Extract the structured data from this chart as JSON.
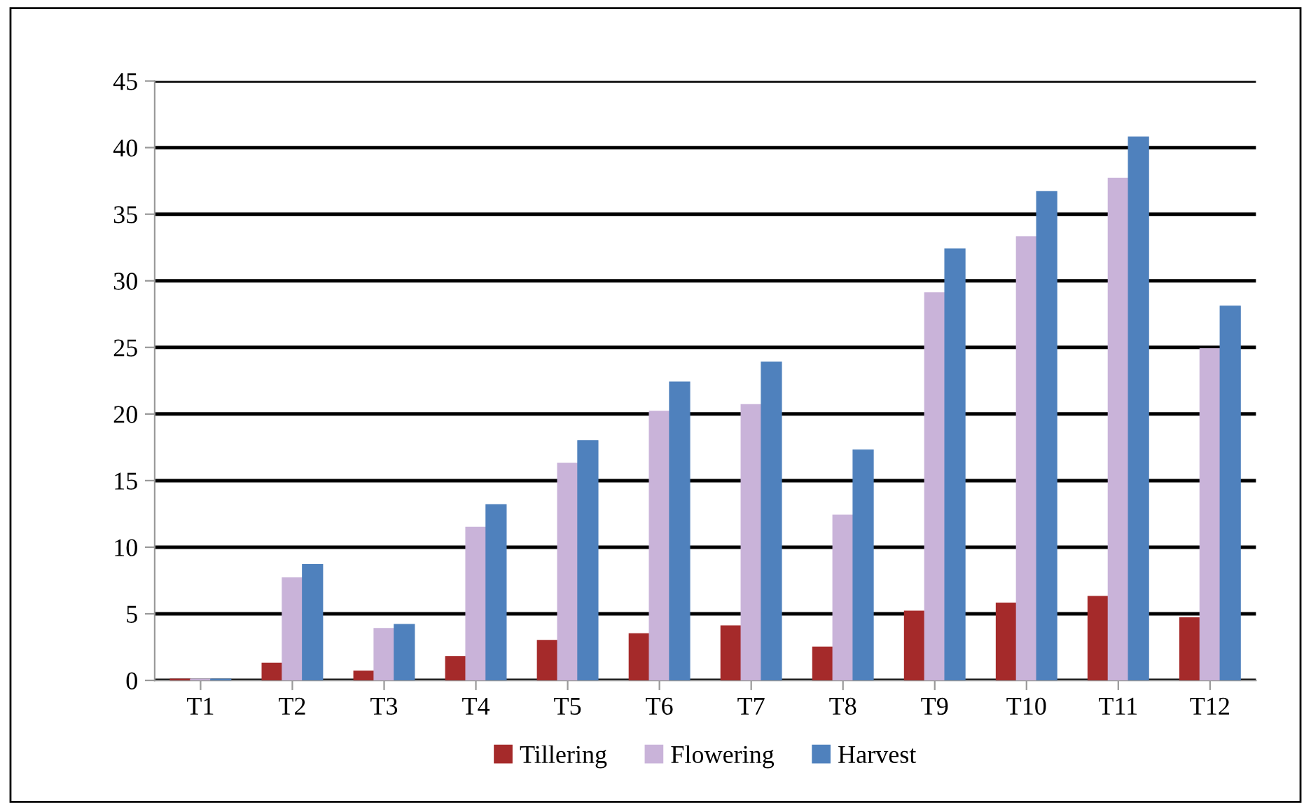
{
  "chart_data": {
    "type": "bar",
    "categories": [
      "T1",
      "T2",
      "T3",
      "T4",
      "T5",
      "T6",
      "T7",
      "T8",
      "T9",
      "T10",
      "T11",
      "T12"
    ],
    "series": [
      {
        "name": "Tillering",
        "color": "#a52a2a",
        "values": [
          0.1,
          1.3,
          0.7,
          1.8,
          3.0,
          3.5,
          4.1,
          2.5,
          5.2,
          5.8,
          6.3,
          4.7
        ]
      },
      {
        "name": "Flowering",
        "color": "#c9b3d9",
        "values": [
          0.1,
          7.7,
          3.9,
          11.5,
          16.3,
          20.2,
          20.7,
          12.4,
          29.1,
          33.3,
          37.7,
          24.9
        ]
      },
      {
        "name": "Harvest",
        "color": "#4f81bd",
        "values": [
          0.1,
          8.7,
          4.2,
          13.2,
          18.0,
          22.4,
          23.9,
          17.3,
          32.4,
          36.7,
          40.8,
          28.1
        ]
      }
    ],
    "ylim": [
      0,
      45
    ],
    "yticks": [
      0,
      5,
      10,
      15,
      20,
      25,
      30,
      35,
      40,
      45
    ],
    "grid": "y",
    "legend": "bottom"
  }
}
